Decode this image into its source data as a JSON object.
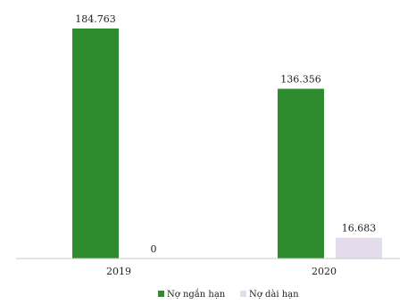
{
  "chart_data": {
    "type": "bar",
    "categories": [
      "2019",
      "2020"
    ],
    "series": [
      {
        "name": "Nợ ngắn hạn",
        "values": [
          184.763,
          136.356
        ],
        "labels": [
          "184.763",
          "136.356"
        ],
        "color": "#2e8b2e"
      },
      {
        "name": "Nợ dài hạn",
        "values": [
          0,
          16.683
        ],
        "labels": [
          "0",
          "16.683"
        ],
        "color": "#e4dcec"
      }
    ],
    "title": "",
    "xlabel": "",
    "ylabel": "",
    "ylim": [
      0,
      184.763
    ],
    "grid": false,
    "legend_position": "bottom-center"
  },
  "colors": {
    "axis": "#c8c8c8",
    "text": "#222222"
  }
}
